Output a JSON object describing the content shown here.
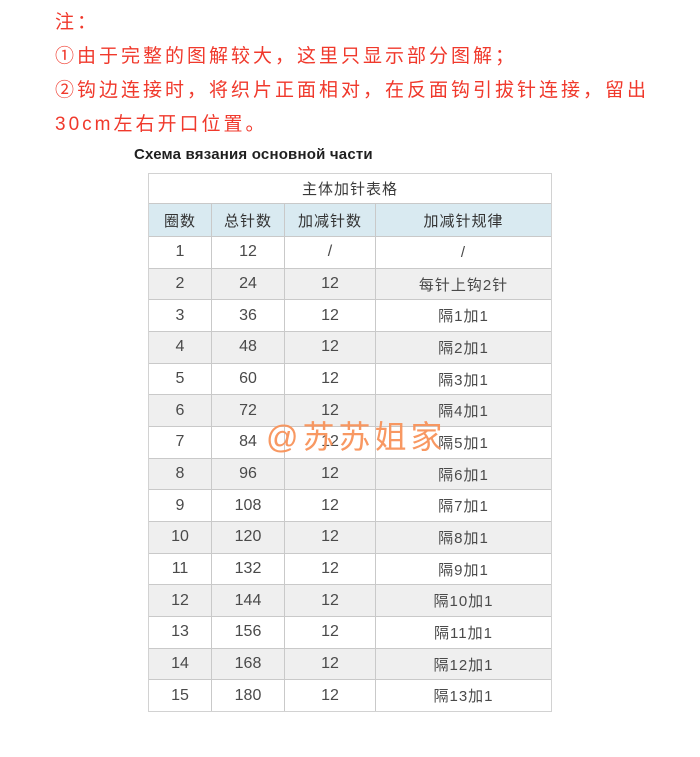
{
  "notes": {
    "lines": [
      "注：",
      "①由于完整的图解较大，这里只显示部分图解；",
      "②钩边连接时，将织片正面相对，在反面钩引拔针连接，留出",
      "30cm左右开口位置。"
    ]
  },
  "schema_label": "Схема вязания основной части",
  "table": {
    "title": "主体加针表格",
    "headers": [
      "圈数",
      "总针数",
      "加减针数",
      "加减针规律"
    ],
    "rows": [
      [
        "1",
        "12",
        "/",
        "/"
      ],
      [
        "2",
        "24",
        "12",
        "每针上钩2针"
      ],
      [
        "3",
        "36",
        "12",
        "隔1加1"
      ],
      [
        "4",
        "48",
        "12",
        "隔2加1"
      ],
      [
        "5",
        "60",
        "12",
        "隔3加1"
      ],
      [
        "6",
        "72",
        "12",
        "隔4加1"
      ],
      [
        "7",
        "84",
        "12",
        "隔5加1"
      ],
      [
        "8",
        "96",
        "12",
        "隔6加1"
      ],
      [
        "9",
        "108",
        "12",
        "隔7加1"
      ],
      [
        "10",
        "120",
        "12",
        "隔8加1"
      ],
      [
        "11",
        "132",
        "12",
        "隔9加1"
      ],
      [
        "12",
        "144",
        "12",
        "隔10加1"
      ],
      [
        "13",
        "156",
        "12",
        "隔11加1"
      ],
      [
        "14",
        "168",
        "12",
        "隔12加1"
      ],
      [
        "15",
        "180",
        "12",
        "隔13加1"
      ]
    ]
  },
  "watermark": {
    "text": "@苏苏姐家"
  },
  "colors": {
    "note_red": "#f0392c",
    "header_blue": "#d9eaf1",
    "stripe_gray": "#efefef",
    "border_gray": "#c9c9c9",
    "watermark_orange": "#f8935a",
    "table_text": "#4a4a4a"
  }
}
